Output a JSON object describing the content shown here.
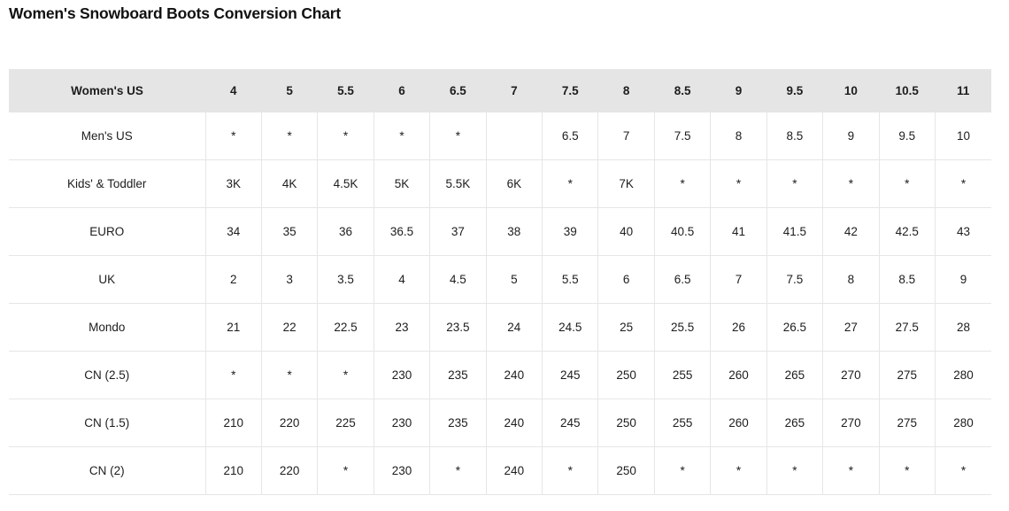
{
  "page": {
    "title": "Women's Snowboard Boots Conversion Chart"
  },
  "colors": {
    "header_background": "#e5e5e5",
    "grid_border": "#e6e6e6",
    "text": "#1d1d1d"
  },
  "chart_data": {
    "type": "table",
    "title": "Women's Snowboard Boots Conversion Chart",
    "header": [
      "Women's US",
      "4",
      "5",
      "5.5",
      "6",
      "6.5",
      "7",
      "7.5",
      "8",
      "8.5",
      "9",
      "9.5",
      "10",
      "10.5",
      "11"
    ],
    "rows": [
      {
        "label": "Men's US",
        "values": [
          "*",
          "*",
          "*",
          "*",
          "*",
          "",
          "6.5",
          "7",
          "7.5",
          "8",
          "8.5",
          "9",
          "9.5",
          "10"
        ]
      },
      {
        "label": "Kids' & Toddler",
        "values": [
          "3K",
          "4K",
          "4.5K",
          "5K",
          "5.5K",
          "6K",
          "*",
          "7K",
          "*",
          "*",
          "*",
          "*",
          "*",
          "*"
        ]
      },
      {
        "label": "EURO",
        "values": [
          "34",
          "35",
          "36",
          "36.5",
          "37",
          "38",
          "39",
          "40",
          "40.5",
          "41",
          "41.5",
          "42",
          "42.5",
          "43"
        ]
      },
      {
        "label": "UK",
        "values": [
          "2",
          "3",
          "3.5",
          "4",
          "4.5",
          "5",
          "5.5",
          "6",
          "6.5",
          "7",
          "7.5",
          "8",
          "8.5",
          "9"
        ]
      },
      {
        "label": "Mondo",
        "values": [
          "21",
          "22",
          "22.5",
          "23",
          "23.5",
          "24",
          "24.5",
          "25",
          "25.5",
          "26",
          "26.5",
          "27",
          "27.5",
          "28"
        ]
      },
      {
        "label": "CN (2.5)",
        "values": [
          "*",
          "*",
          "*",
          "230",
          "235",
          "240",
          "245",
          "250",
          "255",
          "260",
          "265",
          "270",
          "275",
          "280"
        ]
      },
      {
        "label": "CN (1.5)",
        "values": [
          "210",
          "220",
          "225",
          "230",
          "235",
          "240",
          "245",
          "250",
          "255",
          "260",
          "265",
          "270",
          "275",
          "280"
        ]
      },
      {
        "label": "CN (2)",
        "values": [
          "210",
          "220",
          "*",
          "230",
          "*",
          "240",
          "*",
          "250",
          "*",
          "*",
          "*",
          "*",
          "*",
          "*"
        ]
      }
    ]
  }
}
